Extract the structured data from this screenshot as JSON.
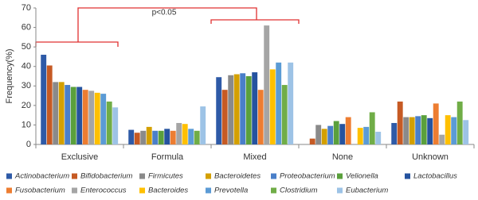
{
  "chart_data": {
    "type": "bar",
    "y_label": "Frequency(%)",
    "annotation": "p<0.05",
    "categories": [
      "Exclusive",
      "Formula",
      "Mixed",
      "None",
      "Unknown"
    ],
    "ylim": [
      0,
      70
    ],
    "yticks": [
      0,
      10,
      20,
      30,
      40,
      50,
      60,
      70
    ],
    "series": [
      {
        "name": "Actinobacterium",
        "color": "#2e5aa7",
        "values": [
          46,
          7.5,
          34.5,
          0,
          11
        ]
      },
      {
        "name": "Bifidobacterium",
        "color": "#c65a24",
        "values": [
          40.5,
          6,
          28,
          3,
          22
        ]
      },
      {
        "name": "Firmicutes",
        "color": "#8a8a8a",
        "values": [
          32,
          7,
          35.5,
          10,
          14
        ]
      },
      {
        "name": "Bacteroidetes",
        "color": "#d4a000",
        "values": [
          32,
          9,
          36,
          8,
          14
        ]
      },
      {
        "name": "Proteobacterium",
        "color": "#4a7fc9",
        "values": [
          30.5,
          7,
          36.5,
          9.5,
          14.5
        ]
      },
      {
        "name": "Velionella",
        "color": "#5aa03c",
        "values": [
          29.5,
          7,
          35,
          12,
          15
        ]
      },
      {
        "name": "Lactobacillus",
        "color": "#25539f",
        "values": [
          29.5,
          8,
          37,
          10.5,
          13.5
        ]
      },
      {
        "name": "Fusobacterium",
        "color": "#ed7d31",
        "values": [
          28,
          7,
          28,
          14,
          21
        ]
      },
      {
        "name": "Enterococcus",
        "color": "#a5a5a5",
        "values": [
          27.5,
          11,
          61,
          0,
          5
        ]
      },
      {
        "name": "Bacteroides",
        "color": "#ffc000",
        "values": [
          26.5,
          10.5,
          38.5,
          8.5,
          15
        ]
      },
      {
        "name": "Prevotella",
        "color": "#5b9bd5",
        "values": [
          26,
          8,
          42,
          9,
          14
        ]
      },
      {
        "name": "Clostridium",
        "color": "#70ad47",
        "values": [
          22,
          7,
          30.5,
          16.5,
          22
        ]
      },
      {
        "name": "Eubacterium",
        "color": "#9dc3e6",
        "values": [
          19,
          19.5,
          42,
          6.5,
          12.5
        ]
      }
    ]
  }
}
